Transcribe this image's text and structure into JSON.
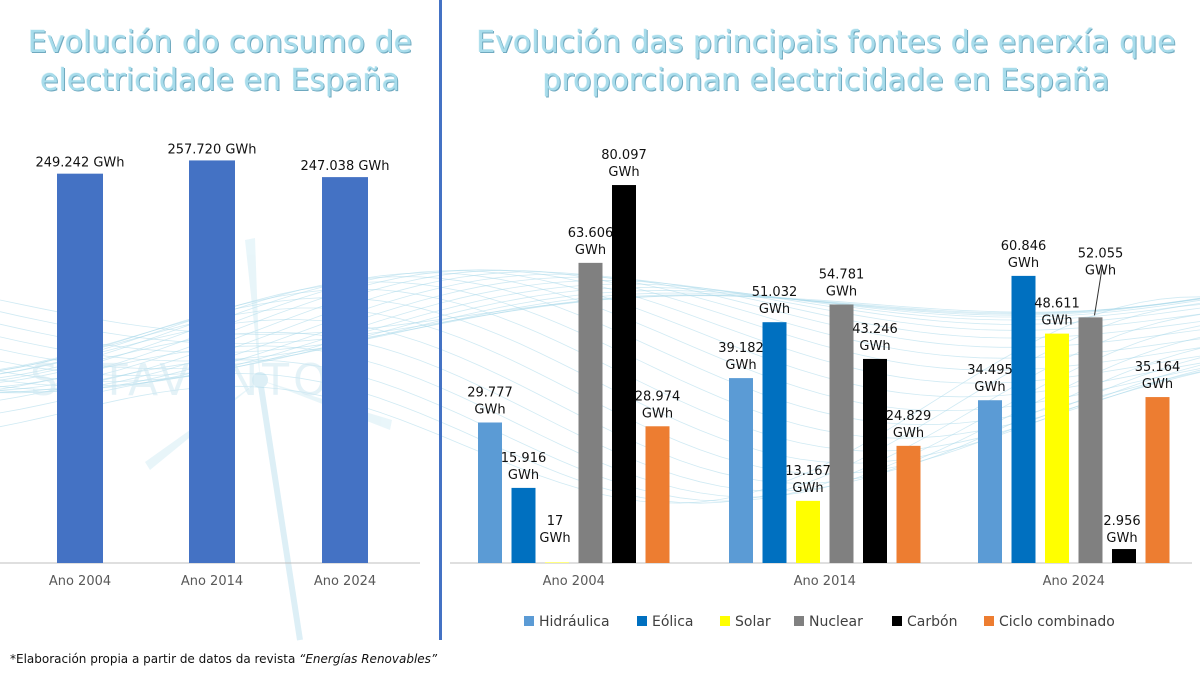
{
  "left_title": "Evolución do consumo de electricidade en España",
  "right_title": "Evolución das principais fontes de enerxía que proporcionan electricidade en España",
  "footnote": {
    "prefix": "*Elaboración propia a partir de datos da revista ",
    "source": "“Energías Renovables”"
  },
  "watermark": "SOTAVENTO",
  "chart_data": [
    {
      "type": "bar",
      "categories": [
        "Ano 2004",
        "Ano 2014",
        "Ano 2024"
      ],
      "values": [
        249242,
        257720,
        247038
      ],
      "data_labels": [
        "249.242 GWh",
        "257.720 GWh",
        "247.038 GWh"
      ],
      "color": "#4472c4",
      "ylim": [
        0,
        290000
      ],
      "grid": false
    },
    {
      "type": "bar",
      "categories": [
        "Ano 2004",
        "Ano 2014",
        "Ano 2024"
      ],
      "legend_position": "bottom",
      "grid": false,
      "ylim": [
        0,
        96000
      ],
      "series": [
        {
          "name": "Hidráulica",
          "color": "#5b9bd5",
          "values": [
            29777,
            39182,
            34495
          ],
          "labels": [
            "29.777 GWh",
            "39.182 GWh",
            "34.495 GWh"
          ]
        },
        {
          "name": "Eólica",
          "color": "#0070c0",
          "values": [
            15916,
            51032,
            60846
          ],
          "labels": [
            "15.916 GWh",
            "51.032 GWh",
            "60.846 GWh"
          ]
        },
        {
          "name": "Solar",
          "color": "#ffff00",
          "values": [
            17,
            13167,
            48611
          ],
          "labels": [
            "17 GWh",
            "13.167 GWh",
            "48.611 GWh"
          ]
        },
        {
          "name": "Nuclear",
          "color": "#808080",
          "values": [
            63606,
            54781,
            52055
          ],
          "labels": [
            "63.606 GWh",
            "54.781 GWh",
            "52.055 GWh"
          ]
        },
        {
          "name": "Carbón",
          "color": "#000000",
          "values": [
            80097,
            43246,
            2956
          ],
          "labels": [
            "80.097 GWh",
            "43.246 GWh",
            "2.956 GWh"
          ]
        },
        {
          "name": "Ciclo combinado",
          "color": "#ed7d31",
          "values": [
            28974,
            24829,
            35164
          ],
          "labels": [
            "28.974 GWh",
            "24.829 GWh",
            "35.164 GWh"
          ]
        }
      ]
    }
  ]
}
